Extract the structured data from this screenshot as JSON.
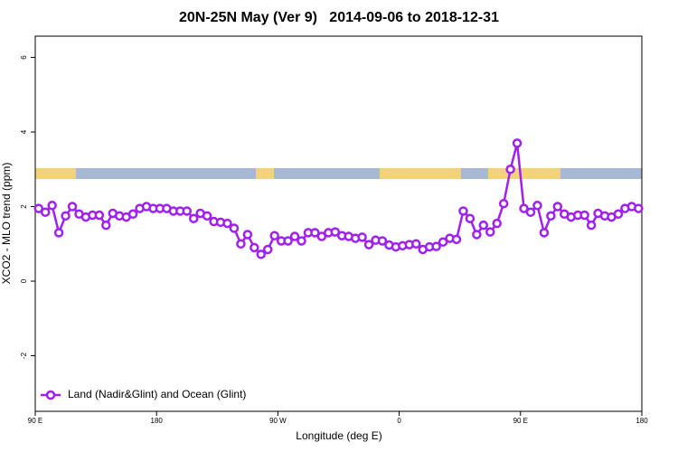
{
  "chart_data": {
    "type": "line",
    "title": "20N-25N May (Ver 9)   2014-09-06 to 2018-12-31",
    "x_label": "Longitude (deg E)",
    "y_label": "XCO2 - MLO trend (ppm)",
    "x": [
      92.5,
      97.5,
      102.5,
      107.5,
      112.5,
      117.5,
      122.5,
      127.5,
      132.5,
      137.5,
      142.5,
      147.5,
      152.5,
      157.5,
      162.5,
      167.5,
      172.5,
      177.5,
      182.5,
      187.5,
      192.5,
      197.5,
      202.5,
      207.5,
      212.5,
      217.5,
      222.5,
      227.5,
      232.5,
      237.5,
      242.5,
      247.5,
      252.5,
      257.5,
      262.5,
      267.5,
      272.5,
      277.5,
      282.5,
      287.5,
      292.5,
      297.5,
      302.5,
      307.5,
      312.5,
      317.5,
      322.5,
      327.5,
      332.5,
      337.5,
      342.5,
      347.5,
      352.5,
      357.5,
      362.5,
      367.5,
      372.5,
      377.5,
      382.5,
      387.5,
      392.5,
      397.5,
      402.5,
      407.5,
      412.5,
      417.5,
      422.5,
      427.5,
      432.5,
      437.5,
      442.5,
      447.5,
      452.5,
      457.5,
      462.5,
      467.5,
      472.5,
      477.5,
      482.5,
      487.5,
      492.5,
      497.5,
      502.5,
      507.5,
      512.5,
      517.5,
      522.5,
      527.5,
      532.5,
      537.5
    ],
    "series": [
      {
        "name": "Land (Nadir&Glint) and Ocean (Glint)",
        "color": "#a020f0",
        "values": [
          1.95,
          1.85,
          2.03,
          1.3,
          1.75,
          2.0,
          1.8,
          1.72,
          1.77,
          1.77,
          1.5,
          1.82,
          1.75,
          1.72,
          1.8,
          1.95,
          2.0,
          1.95,
          1.95,
          1.95,
          1.88,
          1.88,
          1.88,
          1.68,
          1.82,
          1.75,
          1.6,
          1.58,
          1.55,
          1.42,
          1.0,
          1.25,
          0.9,
          0.72,
          0.85,
          1.22,
          1.08,
          1.08,
          1.2,
          1.08,
          1.3,
          1.3,
          1.2,
          1.3,
          1.32,
          1.22,
          1.2,
          1.15,
          1.18,
          0.98,
          1.1,
          1.08,
          0.97,
          0.92,
          0.95,
          0.98,
          1.0,
          0.85,
          0.92,
          0.93,
          1.05,
          1.15,
          1.12,
          1.88,
          1.68,
          1.25,
          1.5,
          1.32,
          1.55,
          2.08,
          3.0,
          3.7,
          1.95,
          1.85,
          2.03,
          1.3,
          1.75,
          2.0,
          1.8,
          1.72,
          1.77,
          1.77,
          1.5,
          1.82,
          1.75,
          1.72,
          1.8,
          1.95,
          2.0,
          1.95
        ]
      }
    ],
    "xlim": [
      90,
      540
    ],
    "xticks": [
      {
        "value": 90,
        "label": "90 E"
      },
      180,
      {
        "value": 270,
        "label": "90 W"
      },
      {
        "value": 360,
        "label": "0"
      },
      {
        "value": 450,
        "label": "90 E"
      },
      {
        "value": 540,
        "label": "180"
      }
    ],
    "ylim": [
      -3.49,
      6.57
    ],
    "yticks": [
      -2,
      0,
      2,
      4,
      6
    ],
    "legend": "bottom-left"
  }
}
